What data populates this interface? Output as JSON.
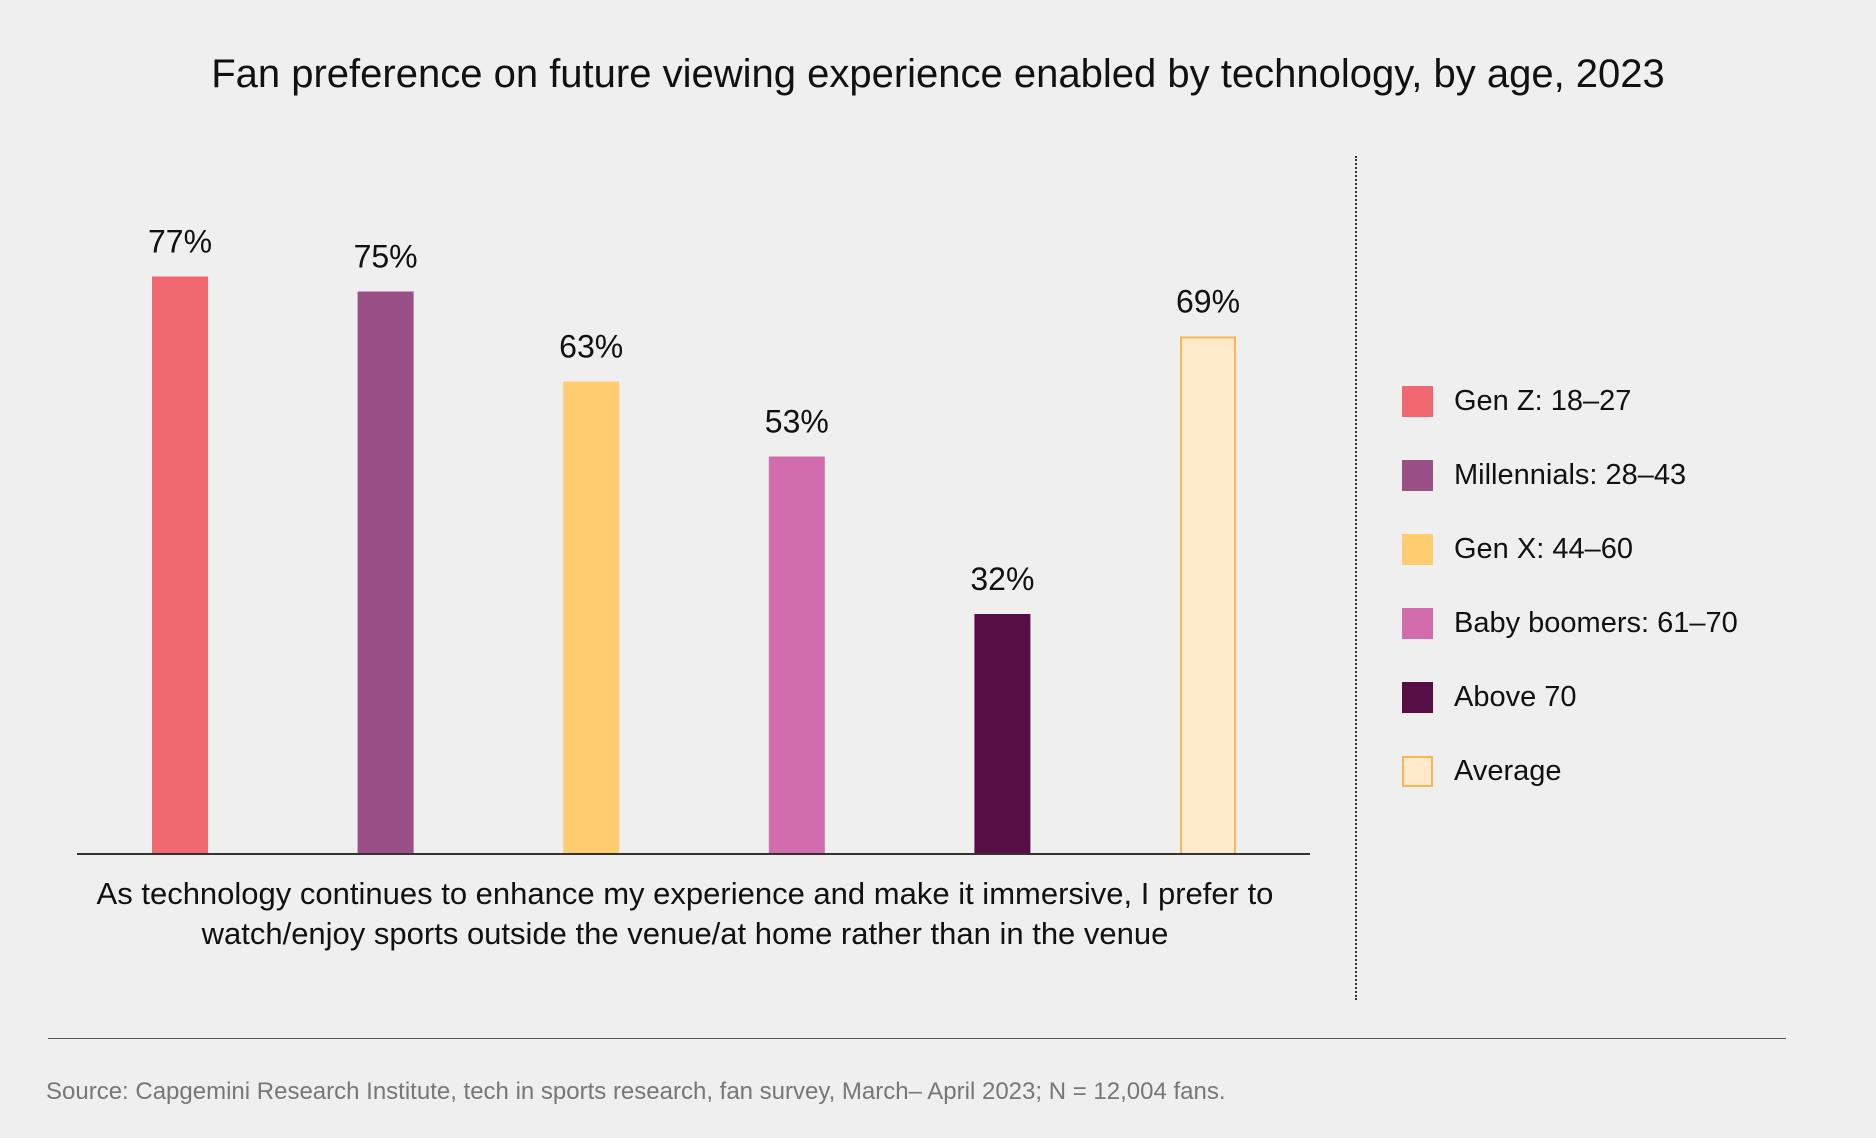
{
  "chart_data": {
    "type": "bar",
    "title": "Fan preference on future viewing experience enabled by technology, by age, 2023",
    "category_label": "As technology continues to enhance my experience and make it immersive, I prefer to watch/enjoy sports outside the venue/at home rather than in the venue",
    "unit": "%",
    "ylim": [
      0,
      100
    ],
    "grid": false,
    "legend_position": "right",
    "series": [
      {
        "name": "Gen Z: 18–27",
        "value": 77,
        "label": "77%",
        "color": "#f26870",
        "hollow": false
      },
      {
        "name": "Millennials: 28–43",
        "value": 75,
        "label": "75%",
        "color": "#9a4f87",
        "hollow": false
      },
      {
        "name": "Gen X: 44–60",
        "value": 63,
        "label": "63%",
        "color": "#ffcc6f",
        "hollow": false
      },
      {
        "name": "Baby boomers: 61–70",
        "value": 53,
        "label": "53%",
        "color": "#d36cad",
        "hollow": false
      },
      {
        "name": "Above 70",
        "value": 32,
        "label": "32%",
        "color": "#560e44",
        "hollow": false
      },
      {
        "name": "Average",
        "value": 69,
        "label": "69%",
        "color": "#ffeacc",
        "border_color": "#f9b557",
        "hollow": true
      }
    ]
  },
  "source": "Source: Capgemini Research Institute, tech in sports research, fan survey, March– April 2023; N = 12,004 fans."
}
